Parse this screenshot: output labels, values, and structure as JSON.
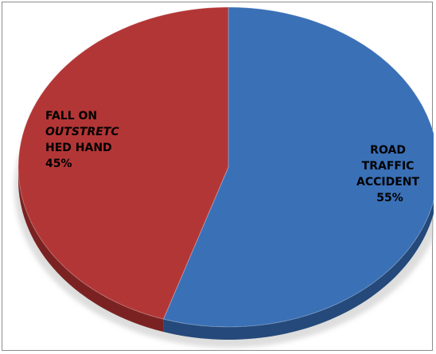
{
  "chart_data": {
    "type": "pie",
    "style": "3d",
    "slices": [
      {
        "label_lines": [
          "ROAD",
          "TRAFFIC",
          "ACCIDENT"
        ],
        "value": 55,
        "value_label": "55%",
        "color": "#3A70B6",
        "side_color": "#24497A"
      },
      {
        "label_lines": [
          "FALL ON",
          "OUTSTRETC",
          "HED HAND"
        ],
        "italic_line_index": 1,
        "value": 45,
        "value_label": "45%",
        "color": "#B33636",
        "side_color": "#7A2222"
      }
    ],
    "start_angle_deg": -90,
    "direction": "clockwise",
    "legend": "none"
  }
}
